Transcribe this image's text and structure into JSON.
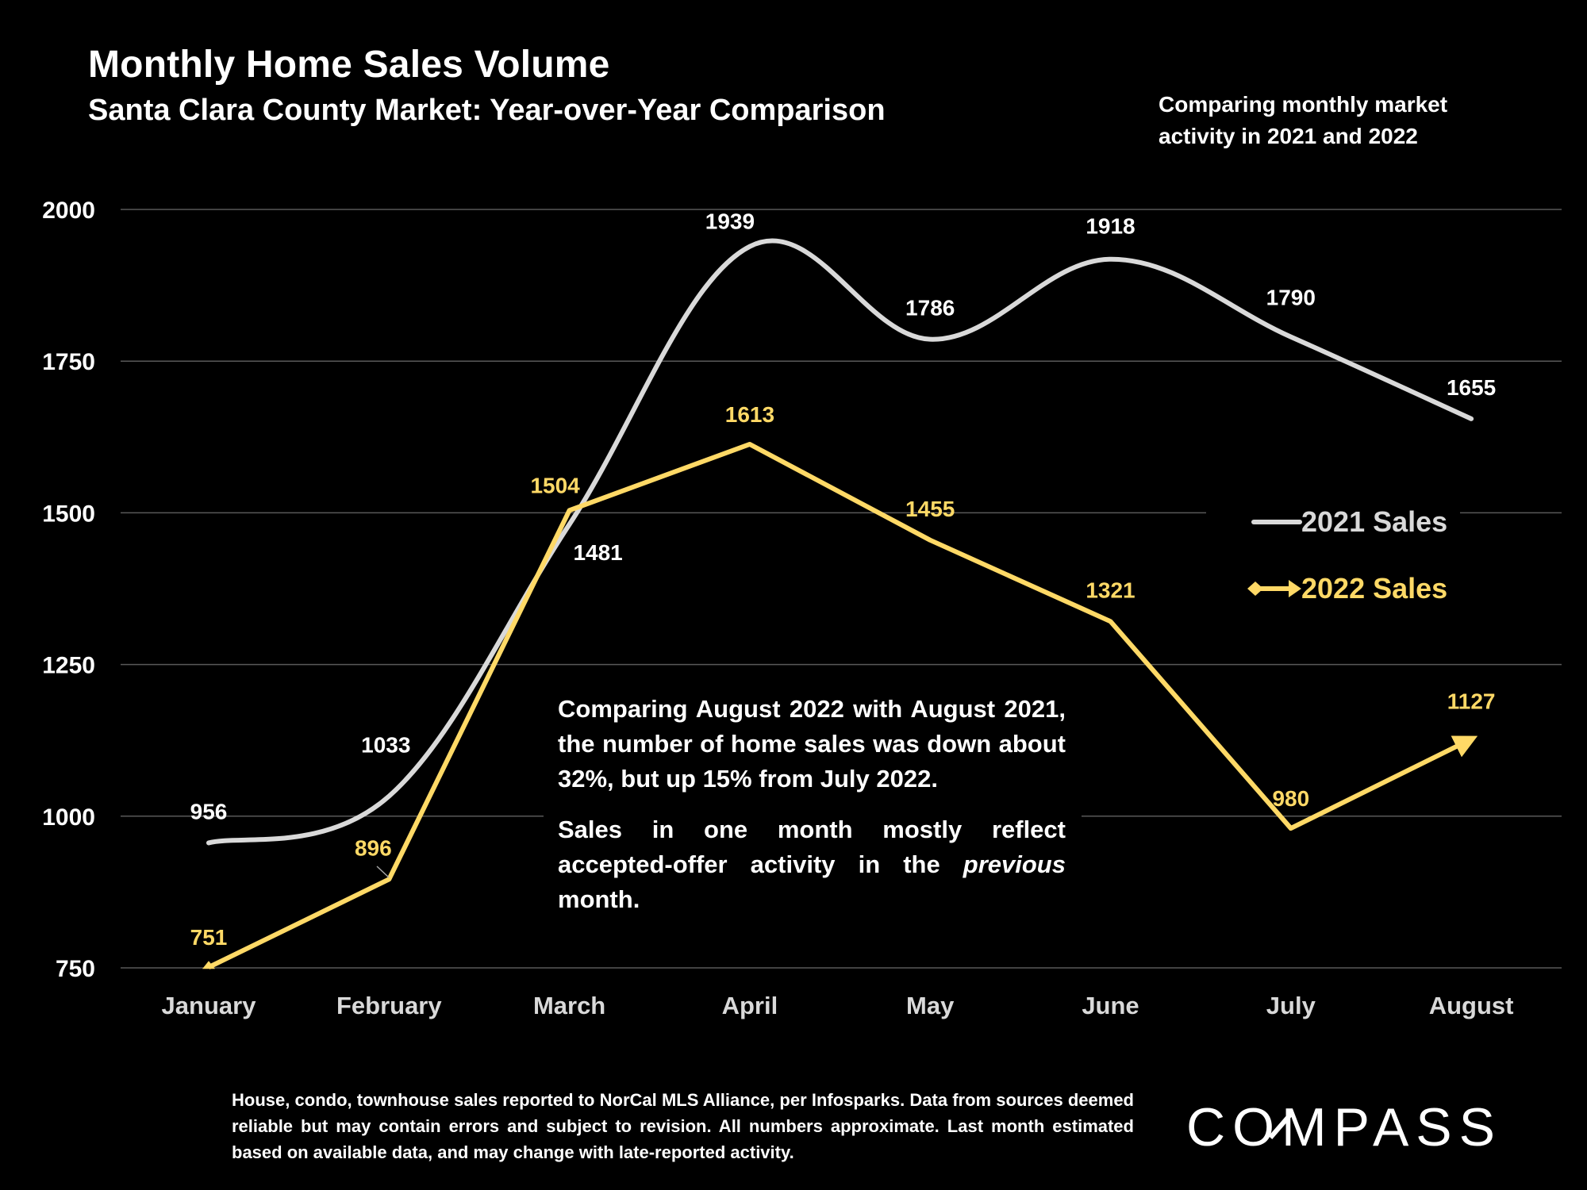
{
  "header": {
    "title": "Monthly Home Sales Volume",
    "subtitle": "Santa Clara County Market: Year-over-Year Comparison",
    "side_note": "Comparing monthly market activity in 2021 and 2022"
  },
  "annotation": {
    "para1": "Comparing August 2022 with August 2021, the number of home sales was down about 32%, but up 15% from July 2022.",
    "para2_pre": "Sales in one month mostly reflect accepted-offer activity in the ",
    "para2_em": "previous",
    "para2_post": " month."
  },
  "footnote": "House, condo, townhouse sales reported to NorCal MLS Alliance, per Infosparks. Data from sources deemed reliable but may contain errors and subject to revision. All numbers approximate. Last month estimated based on available data, and may change with late-reported activity.",
  "logo": {
    "text": "COMPASS"
  },
  "colors": {
    "background": "#000000",
    "series_2021": "#d9d9d9",
    "series_2022": "#ffd966",
    "gridline": "#595959"
  },
  "chart_data": {
    "type": "line",
    "categories": [
      "January",
      "February",
      "March",
      "April",
      "May",
      "June",
      "July",
      "August"
    ],
    "yticks": [
      750,
      1000,
      1250,
      1500,
      1750,
      2000
    ],
    "ylim": [
      750,
      2000
    ],
    "grid": true,
    "legend_position": "right",
    "series": [
      {
        "name": "2021 Sales",
        "values": [
          956,
          1033,
          1481,
          1939,
          1786,
          1918,
          1790,
          1655
        ],
        "color": "#d9d9d9",
        "smooth": true,
        "marker": "none"
      },
      {
        "name": "2022 Sales",
        "values": [
          751,
          896,
          1504,
          1613,
          1455,
          1321,
          980,
          1127
        ],
        "color": "#ffd966",
        "smooth": false,
        "marker": "arrow"
      }
    ]
  }
}
